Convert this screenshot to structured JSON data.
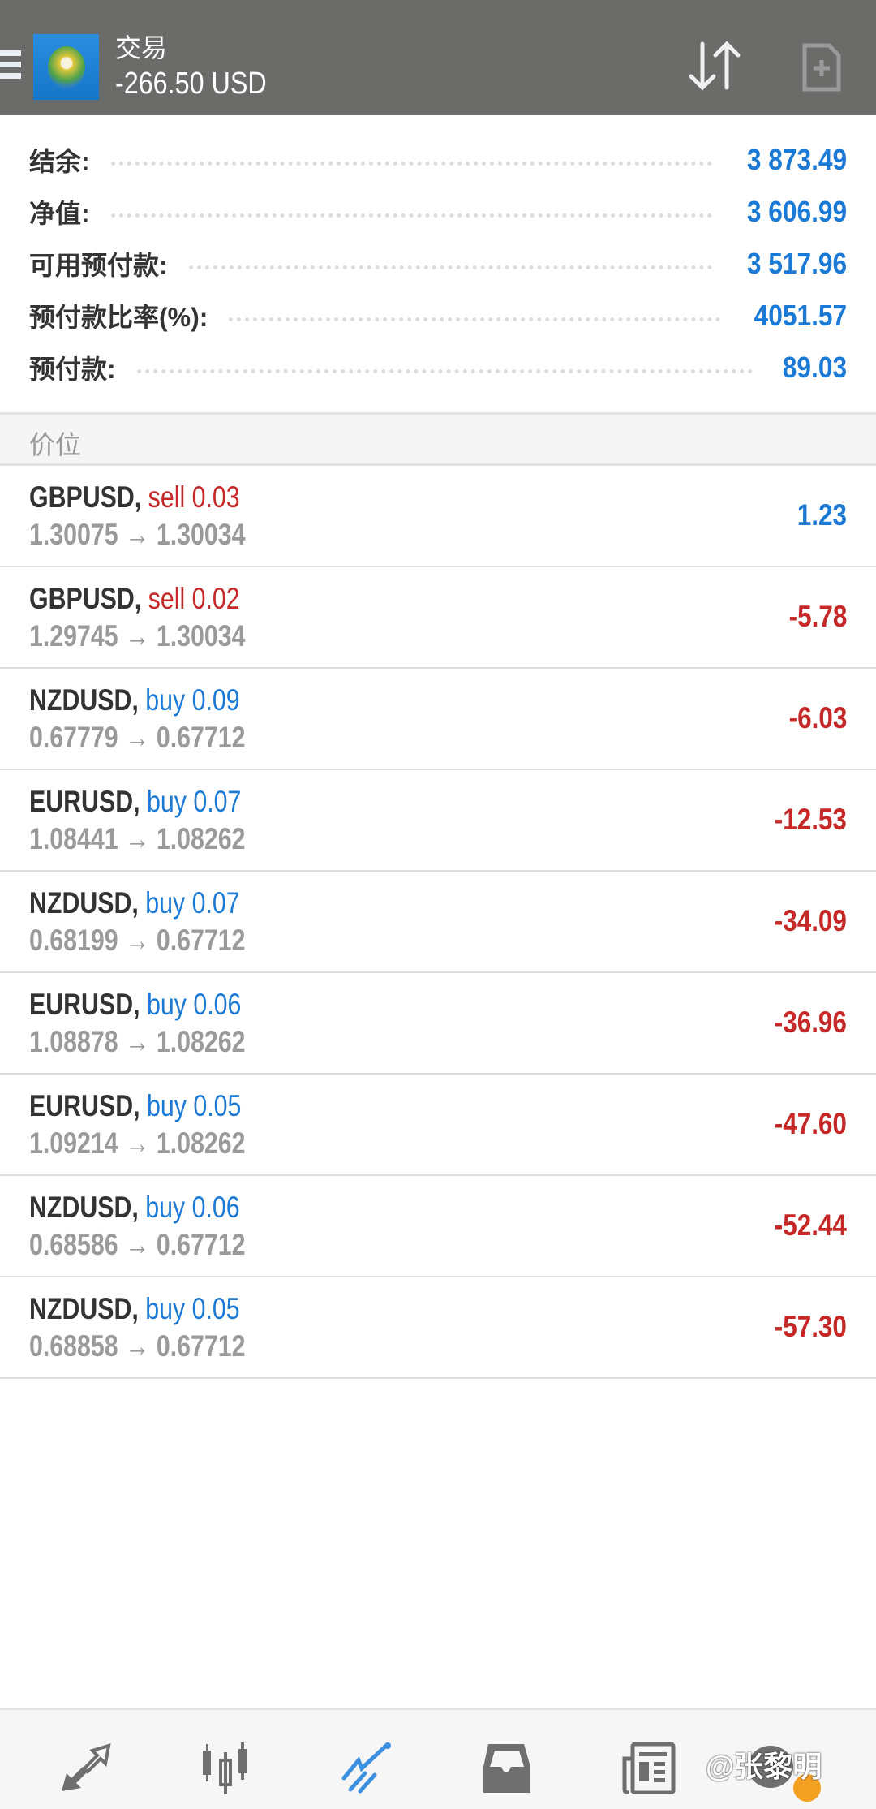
{
  "header": {
    "title": "交易",
    "subtitle": "-266.50 USD",
    "icons": [
      "menu-icon",
      "mt4-logo",
      "sort-icon",
      "new-order-icon"
    ]
  },
  "summary": [
    {
      "label": "结余:",
      "value": "3 873.49"
    },
    {
      "label": "净值:",
      "value": "3 606.99"
    },
    {
      "label": "可用预付款:",
      "value": "3 517.96"
    },
    {
      "label": "预付款比率(%):",
      "value": "4051.57"
    },
    {
      "label": "预付款:",
      "value": "89.03"
    }
  ],
  "section_title": "价位",
  "positions": [
    {
      "symbol": "GBPUSD,",
      "side": "sell 0.03",
      "type": "sell",
      "prices": "1.30075 → 1.30034",
      "profit": "1.23"
    },
    {
      "symbol": "GBPUSD,",
      "side": "sell 0.02",
      "type": "sell",
      "prices": "1.29745 → 1.30034",
      "profit": "-5.78"
    },
    {
      "symbol": "NZDUSD,",
      "side": "buy 0.09",
      "type": "buy",
      "prices": "0.67779 → 0.67712",
      "profit": "-6.03"
    },
    {
      "symbol": "EURUSD,",
      "side": "buy 0.07",
      "type": "buy",
      "prices": "1.08441 → 1.08262",
      "profit": "-12.53"
    },
    {
      "symbol": "NZDUSD,",
      "side": "buy 0.07",
      "type": "buy",
      "prices": "0.68199 → 0.67712",
      "profit": "-34.09"
    },
    {
      "symbol": "EURUSD,",
      "side": "buy 0.06",
      "type": "buy",
      "prices": "1.08878 → 1.08262",
      "profit": "-36.96"
    },
    {
      "symbol": "EURUSD,",
      "side": "buy 0.05",
      "type": "buy",
      "prices": "1.09214 → 1.08262",
      "profit": "-47.60"
    },
    {
      "symbol": "NZDUSD,",
      "side": "buy 0.06",
      "type": "buy",
      "prices": "0.68586 → 0.67712",
      "profit": "-52.44"
    },
    {
      "symbol": "NZDUSD,",
      "side": "buy 0.05",
      "type": "buy",
      "prices": "0.68858 → 0.67712",
      "profit": "-57.30"
    }
  ],
  "nav": {
    "items": [
      "quotes-icon",
      "chart-icon",
      "trade-icon",
      "history-icon",
      "news-icon",
      "chat-icon"
    ],
    "active": "trade-icon"
  },
  "watermark": "@张黎明",
  "colors": {
    "header": "#6b6c6a",
    "accent": "#1a7ad6",
    "loss": "#c62828",
    "active_nav": "#3d8fe0"
  }
}
